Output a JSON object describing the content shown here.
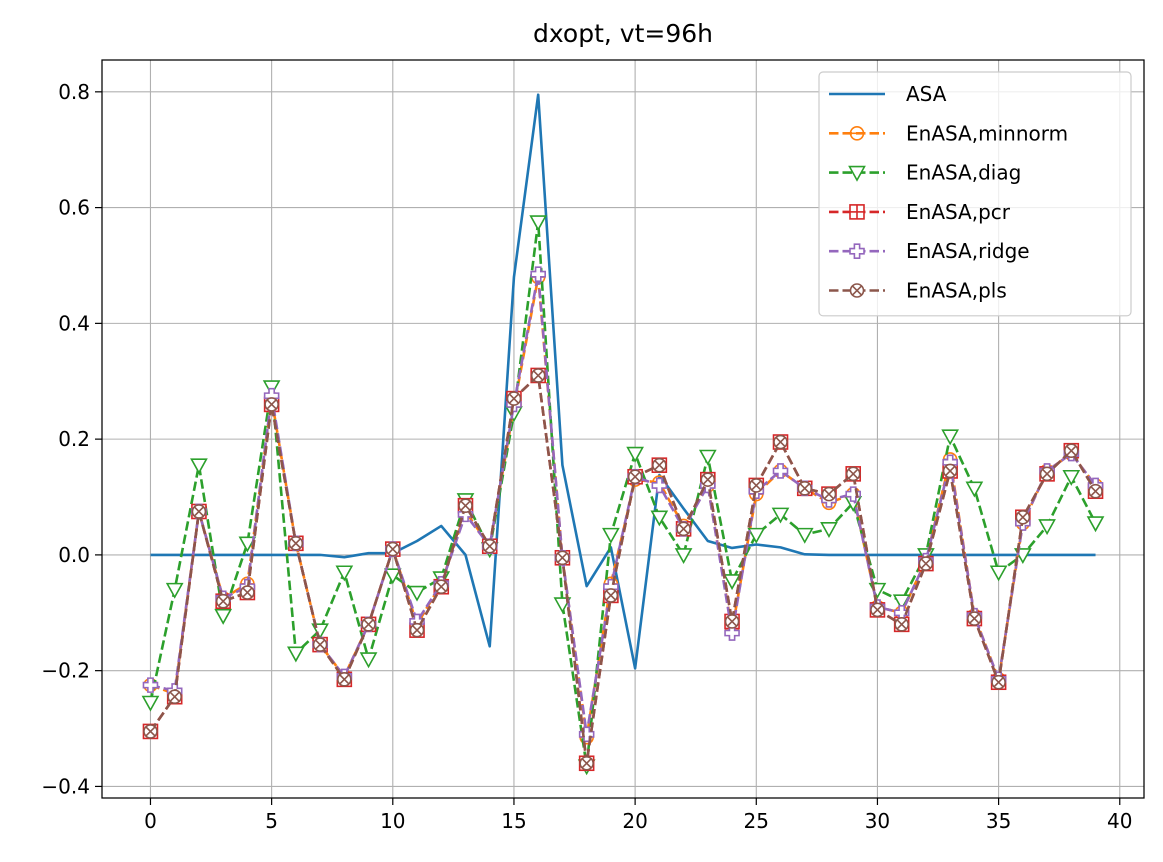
{
  "chart_data": {
    "type": "line",
    "title": "dxopt, vt=96h",
    "xlabel": "",
    "ylabel": "",
    "xlim": [
      -2,
      41
    ],
    "ylim": [
      -0.42,
      0.855
    ],
    "xticks": [
      0,
      5,
      10,
      15,
      20,
      25,
      30,
      35,
      40
    ],
    "xtick_labels": [
      "0",
      "5",
      "10",
      "15",
      "20",
      "25",
      "30",
      "35",
      "40"
    ],
    "yticks": [
      -0.4,
      -0.2,
      0.0,
      0.2,
      0.4,
      0.6,
      0.8
    ],
    "ytick_labels": [
      "−0.4",
      "−0.2",
      "0.0",
      "0.2",
      "0.4",
      "0.6",
      "0.8"
    ],
    "grid": true,
    "legend_position": "upper right",
    "series": [
      {
        "name": "ASA",
        "color": "#1f77b4",
        "linestyle": "solid",
        "marker": "none",
        "x": [
          0,
          1,
          2,
          3,
          4,
          5,
          6,
          7,
          8,
          9,
          10,
          11,
          12,
          13,
          14,
          15,
          16,
          17,
          18,
          19,
          20,
          21,
          22,
          23,
          24,
          25,
          26,
          27,
          28,
          29,
          30,
          31,
          32,
          33,
          34,
          35,
          36,
          37,
          38,
          39
        ],
        "values": [
          0,
          0,
          0,
          0,
          0,
          0,
          0,
          0,
          -0.004,
          0.003,
          0.003,
          0.024,
          0.05,
          0,
          -0.158,
          0.48,
          0.795,
          0.155,
          -0.054,
          0.013,
          -0.196,
          0.138,
          0.08,
          0.024,
          0.012,
          0.018,
          0.013,
          0.001,
          0,
          0,
          0,
          0,
          0,
          0,
          0,
          0,
          0,
          0,
          0,
          0
        ]
      },
      {
        "name": "EnASA,minnorm",
        "color": "#ff7f0e",
        "linestyle": "dashed",
        "marker": "circle-minus",
        "x": [
          0,
          1,
          2,
          3,
          4,
          5,
          6,
          7,
          8,
          9,
          10,
          11,
          12,
          13,
          14,
          15,
          16,
          17,
          18,
          19,
          20,
          21,
          22,
          23,
          24,
          25,
          26,
          27,
          28,
          29,
          30,
          31,
          32,
          33,
          34,
          35,
          36,
          37,
          38,
          39
        ],
        "values": [
          -0.225,
          -0.24,
          0.075,
          -0.075,
          -0.05,
          0.27,
          0.02,
          -0.155,
          -0.21,
          -0.12,
          0.01,
          -0.12,
          -0.05,
          0.075,
          0.015,
          0.255,
          0.48,
          -0.005,
          -0.315,
          -0.05,
          0.13,
          0.125,
          0.05,
          0.12,
          -0.13,
          0.105,
          0.145,
          0.115,
          0.09,
          0.105,
          -0.09,
          -0.1,
          -0.01,
          0.165,
          -0.105,
          -0.215,
          0.055,
          0.145,
          0.175,
          0.12
        ]
      },
      {
        "name": "EnASA,diag",
        "color": "#2ca02c",
        "linestyle": "dashed",
        "marker": "triangle-down",
        "x": [
          0,
          1,
          2,
          3,
          4,
          5,
          6,
          7,
          8,
          9,
          10,
          11,
          12,
          13,
          14,
          15,
          16,
          17,
          18,
          19,
          20,
          21,
          22,
          23,
          24,
          25,
          26,
          27,
          28,
          29,
          30,
          31,
          32,
          33,
          34,
          35,
          36,
          37,
          38,
          39
        ],
        "values": [
          -0.255,
          -0.06,
          0.155,
          -0.105,
          0.02,
          0.29,
          -0.17,
          -0.13,
          -0.03,
          -0.18,
          -0.035,
          -0.065,
          -0.04,
          0.095,
          0.01,
          0.245,
          0.575,
          -0.085,
          -0.365,
          0.035,
          0.175,
          0.065,
          0.0,
          0.17,
          -0.045,
          0.035,
          0.07,
          0.035,
          0.045,
          0.09,
          -0.06,
          -0.08,
          0.0,
          0.205,
          0.115,
          -0.03,
          0.0,
          0.05,
          0.135,
          0.055
        ]
      },
      {
        "name": "EnASA,pcr",
        "color": "#d62728",
        "linestyle": "dashed",
        "marker": "square-cross",
        "x": [
          0,
          1,
          2,
          3,
          4,
          5,
          6,
          7,
          8,
          9,
          10,
          11,
          12,
          13,
          14,
          15,
          16,
          17,
          18,
          19,
          20,
          21,
          22,
          23,
          24,
          25,
          26,
          27,
          28,
          29,
          30,
          31,
          32,
          33,
          34,
          35,
          36,
          37,
          38,
          39
        ],
        "values": [
          -0.305,
          -0.245,
          0.075,
          -0.08,
          -0.065,
          0.26,
          0.02,
          -0.155,
          -0.215,
          -0.12,
          0.01,
          -0.13,
          -0.055,
          0.085,
          0.015,
          0.27,
          0.31,
          -0.005,
          -0.36,
          -0.07,
          0.135,
          0.155,
          0.045,
          0.13,
          -0.115,
          0.12,
          0.195,
          0.115,
          0.105,
          0.14,
          -0.095,
          -0.12,
          -0.015,
          0.145,
          -0.11,
          -0.22,
          0.065,
          0.14,
          0.18,
          0.11
        ]
      },
      {
        "name": "EnASA,ridge",
        "color": "#9467bd",
        "linestyle": "dashed",
        "marker": "plus-filled",
        "x": [
          0,
          1,
          2,
          3,
          4,
          5,
          6,
          7,
          8,
          9,
          10,
          11,
          12,
          13,
          14,
          15,
          16,
          17,
          18,
          19,
          20,
          21,
          22,
          23,
          24,
          25,
          26,
          27,
          28,
          29,
          30,
          31,
          32,
          33,
          34,
          35,
          36,
          37,
          38,
          39
        ],
        "values": [
          -0.225,
          -0.235,
          0.075,
          -0.075,
          -0.055,
          0.275,
          0.02,
          -0.155,
          -0.21,
          -0.12,
          0.01,
          -0.115,
          -0.05,
          0.07,
          0.015,
          0.26,
          0.485,
          -0.005,
          -0.31,
          -0.055,
          0.135,
          0.12,
          0.045,
          0.12,
          -0.135,
          0.11,
          0.145,
          0.115,
          0.095,
          0.105,
          -0.09,
          -0.1,
          -0.01,
          0.16,
          -0.105,
          -0.215,
          0.055,
          0.145,
          0.175,
          0.12
        ]
      },
      {
        "name": "EnASA,pls",
        "color": "#8c564b",
        "linestyle": "dashed",
        "marker": "circle-x",
        "x": [
          0,
          1,
          2,
          3,
          4,
          5,
          6,
          7,
          8,
          9,
          10,
          11,
          12,
          13,
          14,
          15,
          16,
          17,
          18,
          19,
          20,
          21,
          22,
          23,
          24,
          25,
          26,
          27,
          28,
          29,
          30,
          31,
          32,
          33,
          34,
          35,
          36,
          37,
          38,
          39
        ],
        "values": [
          -0.305,
          -0.245,
          0.075,
          -0.08,
          -0.065,
          0.26,
          0.02,
          -0.155,
          -0.215,
          -0.12,
          0.01,
          -0.13,
          -0.055,
          0.085,
          0.015,
          0.27,
          0.31,
          -0.005,
          -0.36,
          -0.07,
          0.135,
          0.155,
          0.045,
          0.13,
          -0.115,
          0.12,
          0.195,
          0.115,
          0.105,
          0.14,
          -0.095,
          -0.12,
          -0.015,
          0.145,
          -0.11,
          -0.22,
          0.065,
          0.14,
          0.18,
          0.11
        ]
      }
    ]
  }
}
